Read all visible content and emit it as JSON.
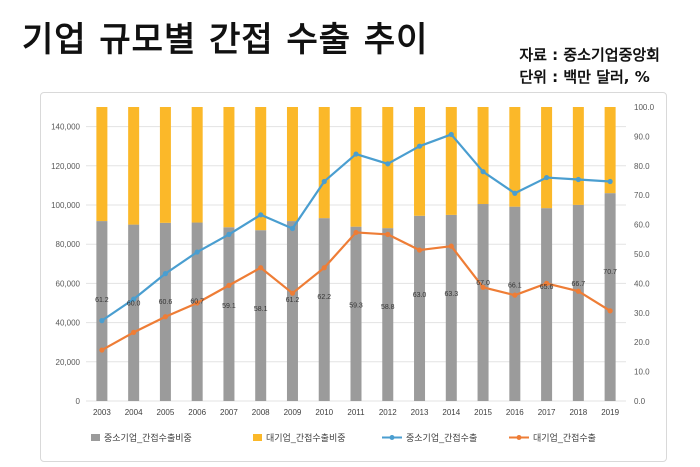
{
  "header": {
    "title": "기업 규모별 간접 수출 추이",
    "source": "자료 : 중소기업중앙회",
    "unit": "단위 : 백만 달러, %"
  },
  "colors": {
    "sme_share": "#9b9b9b",
    "large_share": "#fbb829",
    "sme_export": "#4a9ed0",
    "large_export": "#ee7d36"
  },
  "chart_data": {
    "type": "bar",
    "categories": [
      "2003",
      "2004",
      "2005",
      "2006",
      "2007",
      "2008",
      "2009",
      "2010",
      "2011",
      "2012",
      "2013",
      "2014",
      "2015",
      "2016",
      "2017",
      "2018",
      "2019"
    ],
    "y_left": {
      "ylim": [
        0,
        150000
      ],
      "ticks": [
        "0",
        "20,000",
        "40,000",
        "60,000",
        "80,000",
        "100,000",
        "120,000",
        "140,000"
      ]
    },
    "y_right": {
      "ylim": [
        0,
        100
      ],
      "ticks": [
        "0.0",
        "10.0",
        "20.0",
        "30.0",
        "40.0",
        "50.0",
        "60.0",
        "70.0",
        "80.0",
        "90.0",
        "100.0"
      ]
    },
    "grid": true,
    "legend_position": "bottom",
    "series": [
      {
        "name": "중소기업_간접수출비중",
        "kind": "bar-stack",
        "axis": "right",
        "values": [
          61.2,
          60.0,
          60.6,
          60.7,
          59.1,
          58.1,
          61.2,
          62.2,
          59.3,
          58.8,
          63.0,
          63.3,
          67.0,
          66.1,
          65.6,
          66.7,
          70.7
        ],
        "labels": [
          "61.2",
          "60.0",
          "60.6",
          "60.7",
          "59.1",
          "58.1",
          "61.2",
          "62.2",
          "59.3",
          "58.8",
          "63.0",
          "63.3",
          "67.0",
          "66.1",
          "65.6",
          "66.7",
          "70.7"
        ]
      },
      {
        "name": "대기업_간접수출비중",
        "kind": "bar-stack",
        "axis": "right",
        "values": [
          38.8,
          40.0,
          39.4,
          39.3,
          40.9,
          41.9,
          38.8,
          37.8,
          40.7,
          41.2,
          37.0,
          36.7,
          33.0,
          33.9,
          34.4,
          33.3,
          29.3
        ]
      },
      {
        "name": "중소기업_간접수출",
        "kind": "line",
        "axis": "left",
        "values": [
          41000,
          52000,
          65000,
          76000,
          85000,
          95000,
          88000,
          112000,
          126000,
          121000,
          130000,
          136000,
          117000,
          106000,
          114000,
          113000,
          112000
        ]
      },
      {
        "name": "대기업_간접수출",
        "kind": "line",
        "axis": "left",
        "values": [
          26000,
          35000,
          43000,
          50000,
          59000,
          68000,
          55000,
          68000,
          86000,
          85000,
          77000,
          79000,
          58000,
          54000,
          60000,
          56000,
          46000
        ]
      }
    ]
  }
}
